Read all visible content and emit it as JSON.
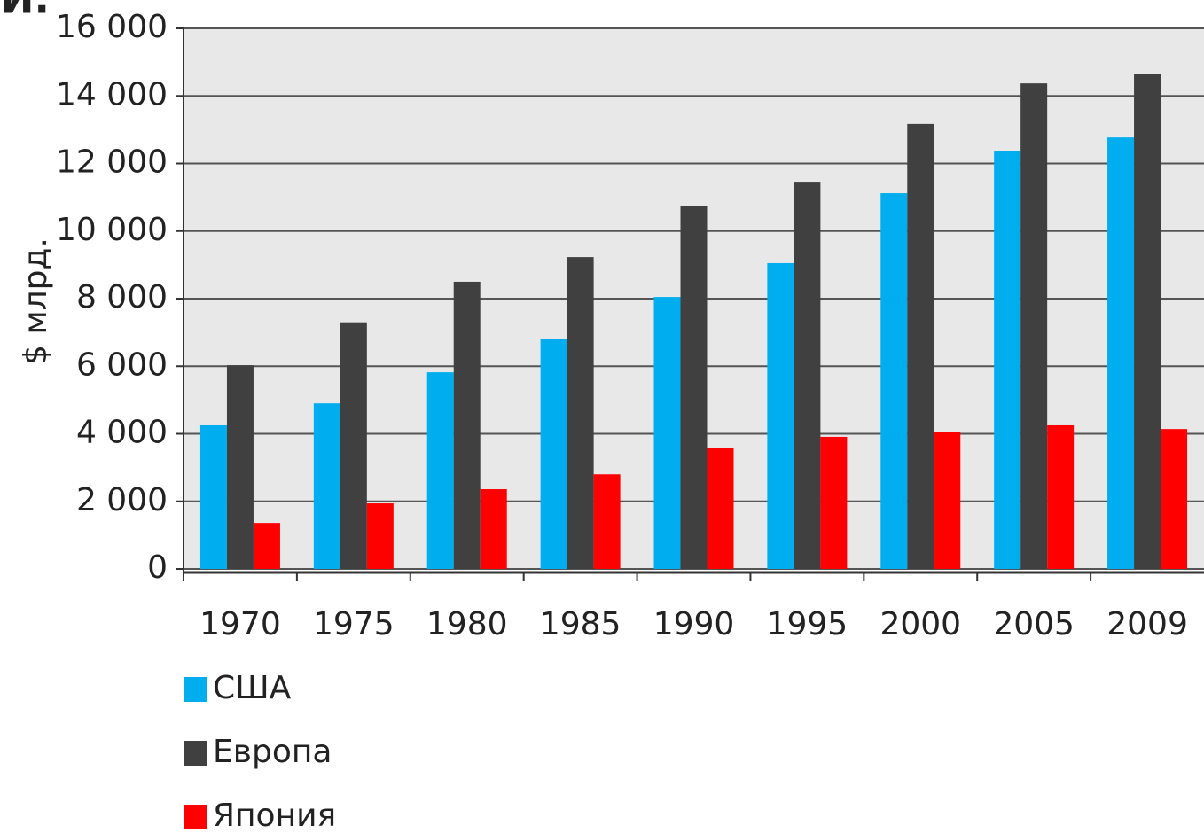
{
  "chart_data": {
    "type": "bar",
    "title": "И.",
    "ylabel": "$ млрд.",
    "categories": [
      "1970",
      "1975",
      "1980",
      "1985",
      "1990",
      "1995",
      "2000",
      "2005",
      "2009"
    ],
    "series": [
      {
        "name": "США",
        "color": "#00aeef",
        "values": [
          4250,
          4900,
          5820,
          6820,
          8050,
          9050,
          11120,
          12380,
          12770
        ]
      },
      {
        "name": "Европа",
        "color": "#404040",
        "values": [
          6030,
          7300,
          8500,
          9230,
          10730,
          11460,
          13170,
          14370,
          14660
        ]
      },
      {
        "name": "Япония",
        "color": "#ff0000",
        "values": [
          1360,
          1940,
          2360,
          2800,
          3590,
          3910,
          4040,
          4250,
          4140
        ]
      }
    ],
    "ylim": [
      0,
      16000
    ],
    "yticks": [
      0,
      {
        "value": 2000,
        "label": "2 000"
      },
      {
        "value": 4000,
        "label": "4 000"
      },
      {
        "value": 6000,
        "label": "6 000"
      },
      {
        "value": 8000,
        "label": "8 000"
      },
      {
        "value": 10000,
        "label": "10 000"
      },
      {
        "value": 12000,
        "label": "12 000"
      },
      {
        "value": 14000,
        "label": "14 000"
      },
      {
        "value": 16000,
        "label": "16 000"
      }
    ],
    "grid": true,
    "legend": "bottom-left"
  }
}
